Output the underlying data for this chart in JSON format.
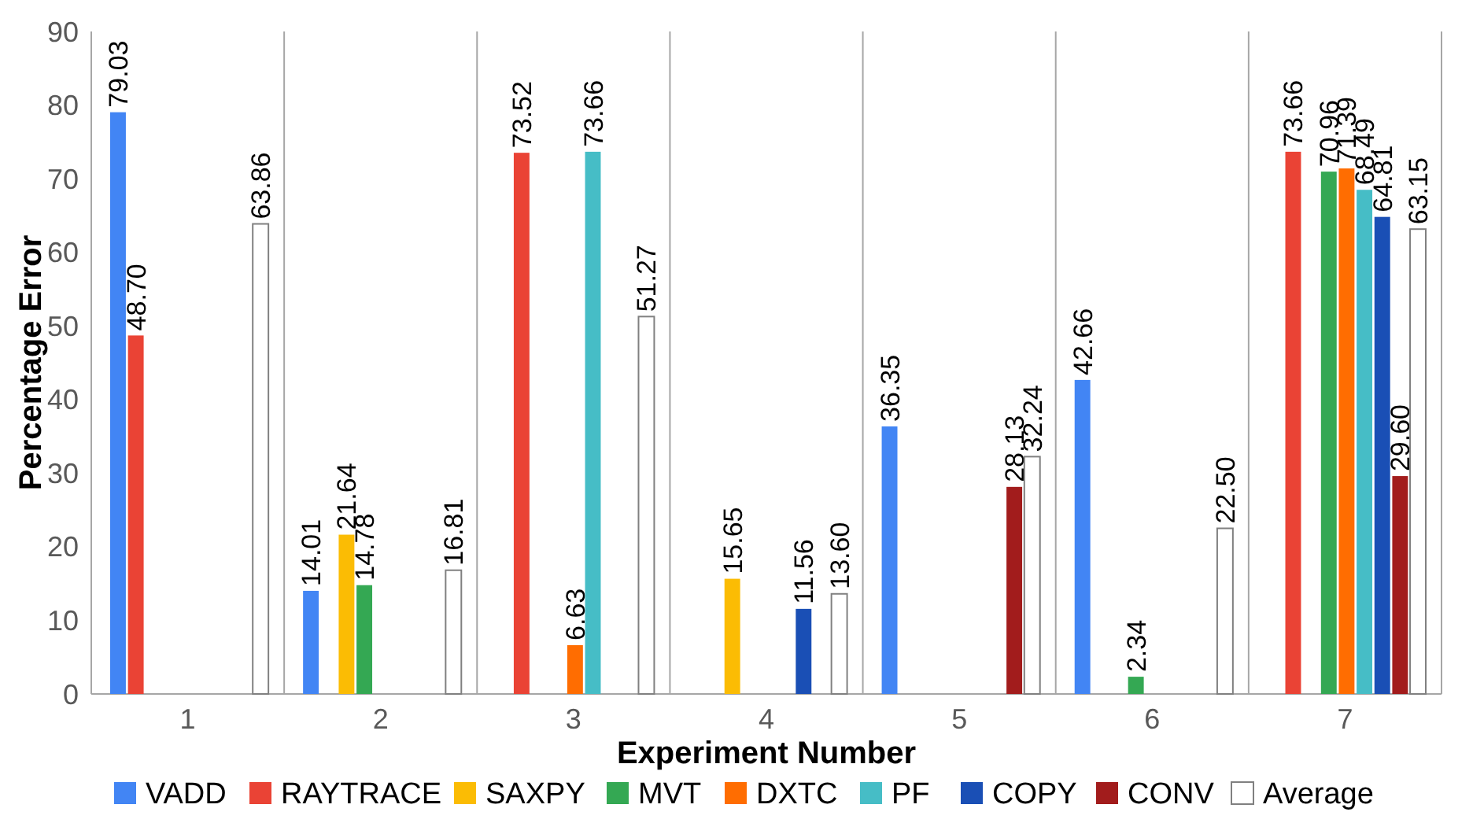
{
  "chart_data": {
    "type": "bar",
    "xlabel": "Experiment Number",
    "ylabel": "Percentage Error",
    "categories": [
      "1",
      "2",
      "3",
      "4",
      "5",
      "6",
      "7"
    ],
    "series": [
      {
        "name": "VADD",
        "color": "#4285f4",
        "values": [
          79.03,
          14.01,
          null,
          null,
          36.35,
          42.66,
          null
        ],
        "value_labels": [
          "79.03",
          "14.01",
          null,
          null,
          "36.35",
          "42.66",
          null
        ]
      },
      {
        "name": "RAYTRACE",
        "color": "#ea4335",
        "values": [
          48.7,
          null,
          73.52,
          null,
          null,
          null,
          73.66
        ],
        "value_labels": [
          "48.70",
          null,
          "73.52",
          null,
          null,
          null,
          "73.66"
        ]
      },
      {
        "name": "SAXPY",
        "color": "#fbbc04",
        "values": [
          null,
          21.64,
          null,
          15.65,
          null,
          null,
          null
        ],
        "value_labels": [
          null,
          "21.64",
          null,
          "15.65",
          null,
          null,
          null
        ]
      },
      {
        "name": "MVT",
        "color": "#34a853",
        "values": [
          null,
          14.78,
          null,
          null,
          null,
          2.34,
          70.96
        ],
        "value_labels": [
          null,
          "14.78",
          null,
          null,
          null,
          "2.34",
          "70.96"
        ]
      },
      {
        "name": "DXTC",
        "color": "#ff6d01",
        "values": [
          null,
          null,
          6.63,
          null,
          null,
          null,
          71.39
        ],
        "value_labels": [
          null,
          null,
          "6.63",
          null,
          null,
          null,
          "71.39"
        ]
      },
      {
        "name": "PF",
        "color": "#46bdc6",
        "values": [
          null,
          null,
          73.66,
          null,
          null,
          null,
          68.49
        ],
        "value_labels": [
          null,
          null,
          "73.66",
          null,
          null,
          null,
          "68.49"
        ]
      },
      {
        "name": "COPY",
        "color": "#1a4fb5",
        "values": [
          null,
          null,
          null,
          11.56,
          null,
          null,
          64.81
        ],
        "value_labels": [
          null,
          null,
          null,
          "11.56",
          null,
          null,
          "64.81"
        ]
      },
      {
        "name": "CONV",
        "color": "#a21c1c",
        "values": [
          null,
          null,
          null,
          null,
          28.13,
          null,
          29.6
        ],
        "value_labels": [
          null,
          null,
          null,
          null,
          "28.13",
          null,
          "29.60"
        ]
      },
      {
        "name": "Average",
        "color": "#ffffff",
        "values": [
          63.86,
          16.81,
          51.27,
          13.6,
          32.24,
          22.5,
          63.15
        ],
        "value_labels": [
          "63.86",
          "16.81",
          "51.27",
          "13.60",
          "32.24",
          "22.50",
          "63.15"
        ]
      }
    ],
    "ylim": [
      0,
      90
    ],
    "yticks": [
      0,
      10,
      20,
      30,
      40,
      50,
      60,
      70,
      80,
      90
    ],
    "grid": "x",
    "legend": "bottom"
  }
}
